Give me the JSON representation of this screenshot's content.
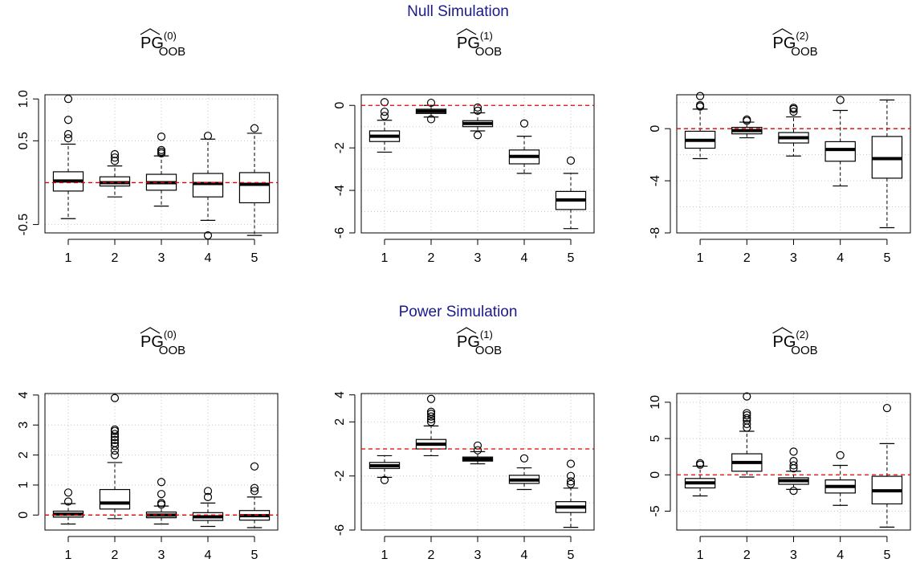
{
  "sections": [
    {
      "title": "Null Simulation"
    },
    {
      "title": "Power Simulation"
    }
  ],
  "chart_data": [
    {
      "type": "box",
      "section": "Null Simulation",
      "title_base": "PG",
      "title_sup": "(0)",
      "title_sub": "OOB",
      "categories": [
        "1",
        "2",
        "3",
        "4",
        "5"
      ],
      "ylim": [
        -0.6,
        1.05
      ],
      "yticks": [
        {
          "v": 1.0,
          "label": "1.0"
        },
        {
          "v": 0.5,
          "label": "0.5"
        },
        {
          "v": -0.5,
          "label": "-0.5"
        }
      ],
      "xgrid": [
        1,
        2,
        3,
        4,
        5
      ],
      "ygrid": [
        -0.5,
        0,
        0.5,
        1.0
      ],
      "refline": 0,
      "boxes": [
        {
          "whislo": -0.43,
          "q1": -0.1,
          "median": 0.02,
          "q3": 0.13,
          "whishi": 0.46,
          "fliers": [
            0.53,
            0.58,
            0.75,
            1.0
          ]
        },
        {
          "whislo": -0.17,
          "q1": -0.04,
          "median": 0.0,
          "q3": 0.07,
          "whishi": 0.2,
          "fliers": [
            0.26,
            0.3,
            0.34
          ]
        },
        {
          "whislo": -0.28,
          "q1": -0.09,
          "median": 0.0,
          "q3": 0.1,
          "whishi": 0.32,
          "fliers": [
            0.35,
            0.37,
            0.39,
            0.55
          ]
        },
        {
          "whislo": -0.45,
          "q1": -0.17,
          "median": -0.01,
          "q3": 0.11,
          "whishi": 0.52,
          "fliers": [
            0.56,
            -0.63
          ]
        },
        {
          "whislo": -0.63,
          "q1": -0.24,
          "median": -0.02,
          "q3": 0.12,
          "whishi": 0.59,
          "fliers": [
            0.65
          ]
        }
      ]
    },
    {
      "type": "box",
      "section": "Null Simulation",
      "title_base": "PG",
      "title_sup": "(1)",
      "title_sub": "OOB",
      "categories": [
        "1",
        "2",
        "3",
        "4",
        "5"
      ],
      "ylim": [
        -6,
        0.5
      ],
      "yticks": [
        {
          "v": 0,
          "label": "0"
        },
        {
          "v": -2,
          "label": "-2"
        },
        {
          "v": -4,
          "label": "-4"
        },
        {
          "v": -6,
          "label": "-6"
        }
      ],
      "xgrid": [
        1,
        2,
        3,
        4,
        5
      ],
      "ygrid": [
        -6,
        -5,
        -4,
        -3,
        -2,
        -1,
        0
      ],
      "refline": 0,
      "boxes": [
        {
          "whislo": -2.2,
          "q1": -1.7,
          "median": -1.45,
          "q3": -1.2,
          "whishi": -0.7,
          "fliers": [
            -0.5,
            -0.3,
            0.15
          ]
        },
        {
          "whislo": -0.55,
          "q1": -0.38,
          "median": -0.28,
          "q3": -0.18,
          "whishi": 0.0,
          "fliers": [
            0.12,
            -0.65
          ]
        },
        {
          "whislo": -1.2,
          "q1": -1.0,
          "median": -0.85,
          "q3": -0.72,
          "whishi": -0.35,
          "fliers": [
            -0.1,
            -0.25,
            -1.4
          ]
        },
        {
          "whislo": -3.2,
          "q1": -2.75,
          "median": -2.4,
          "q3": -2.1,
          "whishi": -1.45,
          "fliers": [
            -0.85
          ]
        },
        {
          "whislo": -5.8,
          "q1": -4.9,
          "median": -4.45,
          "q3": -4.05,
          "whishi": -3.2,
          "fliers": [
            -2.6
          ]
        }
      ]
    },
    {
      "type": "box",
      "section": "Null Simulation",
      "title_base": "PG",
      "title_sup": "(2)",
      "title_sub": "OOB",
      "categories": [
        "1",
        "2",
        "3",
        "4",
        "5"
      ],
      "ylim": [
        -8,
        2.6
      ],
      "yticks": [
        {
          "v": 0,
          "label": "0"
        },
        {
          "v": -4,
          "label": "-4"
        },
        {
          "v": -8,
          "label": "-8"
        }
      ],
      "xgrid": [
        1,
        2,
        3,
        4,
        5
      ],
      "ygrid": [
        -8,
        -6,
        -4,
        -2,
        0,
        2
      ],
      "refline": 0,
      "boxes": [
        {
          "whislo": -2.3,
          "q1": -1.5,
          "median": -0.9,
          "q3": -0.2,
          "whishi": 1.5,
          "fliers": [
            1.7,
            1.8,
            2.5
          ]
        },
        {
          "whislo": -0.7,
          "q1": -0.4,
          "median": -0.15,
          "q3": 0.1,
          "whishi": 0.5,
          "fliers": [
            0.6,
            0.7
          ]
        },
        {
          "whislo": -2.1,
          "q1": -1.1,
          "median": -0.7,
          "q3": -0.3,
          "whishi": 0.9,
          "fliers": [
            1.3,
            1.5,
            1.6
          ]
        },
        {
          "whislo": -4.4,
          "q1": -2.5,
          "median": -1.6,
          "q3": -1.0,
          "whishi": 1.4,
          "fliers": [
            2.2
          ]
        },
        {
          "whislo": -7.6,
          "q1": -3.8,
          "median": -2.3,
          "q3": -0.6,
          "whishi": 2.2,
          "fliers": []
        }
      ]
    },
    {
      "type": "box",
      "section": "Power Simulation",
      "title_base": "PG",
      "title_sup": "(0)",
      "title_sub": "OOB",
      "categories": [
        "1",
        "2",
        "3",
        "4",
        "5"
      ],
      "ylim": [
        -0.5,
        4.05
      ],
      "yticks": [
        {
          "v": 0,
          "label": "0"
        },
        {
          "v": 1,
          "label": "1"
        },
        {
          "v": 2,
          "label": "2"
        },
        {
          "v": 3,
          "label": "3"
        },
        {
          "v": 4,
          "label": "4"
        }
      ],
      "xgrid": [
        1,
        2,
        3,
        4,
        5
      ],
      "ygrid": [
        0,
        1,
        2,
        3,
        4
      ],
      "refline": 0,
      "boxes": [
        {
          "whislo": -0.3,
          "q1": -0.07,
          "median": 0.03,
          "q3": 0.13,
          "whishi": 0.38,
          "fliers": [
            0.45,
            0.75
          ]
        },
        {
          "whislo": -0.12,
          "q1": 0.2,
          "median": 0.4,
          "q3": 0.85,
          "whishi": 1.75,
          "fliers": [
            2.0,
            2.15,
            2.3,
            2.4,
            2.5,
            2.6,
            2.7,
            2.8,
            2.85,
            3.9
          ]
        },
        {
          "whislo": -0.3,
          "q1": -0.09,
          "median": 0.0,
          "q3": 0.1,
          "whishi": 0.3,
          "fliers": [
            0.35,
            0.4,
            0.7,
            1.1
          ]
        },
        {
          "whislo": -0.38,
          "q1": -0.18,
          "median": -0.06,
          "q3": 0.08,
          "whishi": 0.4,
          "fliers": [
            0.6,
            0.8
          ]
        },
        {
          "whislo": -0.42,
          "q1": -0.17,
          "median": -0.02,
          "q3": 0.15,
          "whishi": 0.6,
          "fliers": [
            0.8,
            0.9,
            1.62
          ]
        }
      ]
    },
    {
      "type": "box",
      "section": "Power Simulation",
      "title_base": "PG",
      "title_sup": "(1)",
      "title_sub": "OOB",
      "categories": [
        "1",
        "2",
        "3",
        "4",
        "5"
      ],
      "ylim": [
        -6,
        4.1
      ],
      "yticks": [
        {
          "v": 4,
          "label": "4"
        },
        {
          "v": 2,
          "label": "2"
        },
        {
          "v": -2,
          "label": "-2"
        },
        {
          "v": -6,
          "label": "-6"
        }
      ],
      "xgrid": [
        1,
        2,
        3,
        4,
        5
      ],
      "ygrid": [
        -6,
        -4,
        -2,
        0,
        2,
        4
      ],
      "refline": 0,
      "boxes": [
        {
          "whislo": -2.1,
          "q1": -1.45,
          "median": -1.25,
          "q3": -1.0,
          "whishi": -0.5,
          "fliers": [
            -2.3
          ]
        },
        {
          "whislo": -0.5,
          "q1": 0.0,
          "median": 0.35,
          "q3": 0.7,
          "whishi": 1.7,
          "fliers": [
            2.0,
            2.2,
            2.4,
            2.6,
            2.75,
            3.7
          ]
        },
        {
          "whislo": -1.1,
          "q1": -0.9,
          "median": -0.75,
          "q3": -0.6,
          "whishi": -0.2,
          "fliers": [
            0.25,
            -0.1
          ]
        },
        {
          "whislo": -3.0,
          "q1": -2.55,
          "median": -2.3,
          "q3": -1.95,
          "whishi": -1.4,
          "fliers": [
            -0.7
          ]
        },
        {
          "whislo": -5.8,
          "q1": -4.7,
          "median": -4.3,
          "q3": -3.9,
          "whishi": -2.9,
          "fliers": [
            -1.1,
            -2.0,
            -2.4,
            -2.6
          ]
        }
      ]
    },
    {
      "type": "box",
      "section": "Power Simulation",
      "title_base": "PG",
      "title_sup": "(2)",
      "title_sub": "OOB",
      "categories": [
        "1",
        "2",
        "3",
        "4",
        "5"
      ],
      "ylim": [
        -7.6,
        11.2
      ],
      "yticks": [
        {
          "v": 10,
          "label": "10"
        },
        {
          "v": 5,
          "label": "5"
        },
        {
          "v": 0,
          "label": "0"
        },
        {
          "v": -5,
          "label": "-5"
        }
      ],
      "xgrid": [
        1,
        2,
        3,
        4,
        5
      ],
      "ygrid": [
        -5,
        0,
        5,
        10
      ],
      "refline": 0,
      "boxes": [
        {
          "whislo": -2.9,
          "q1": -1.8,
          "median": -1.1,
          "q3": -0.5,
          "whishi": 1.2,
          "fliers": [
            1.4,
            1.6
          ]
        },
        {
          "whislo": -0.3,
          "q1": 0.5,
          "median": 1.7,
          "q3": 2.9,
          "whishi": 6.0,
          "fliers": [
            6.5,
            7.0,
            7.5,
            7.8,
            8.2,
            8.5,
            10.8
          ]
        },
        {
          "whislo": -2.0,
          "q1": -1.3,
          "median": -0.8,
          "q3": -0.4,
          "whishi": 0.5,
          "fliers": [
            0.9,
            1.3,
            1.9,
            3.2,
            -2.2
          ]
        },
        {
          "whislo": -4.2,
          "q1": -2.5,
          "median": -1.6,
          "q3": -0.7,
          "whishi": 1.3,
          "fliers": [
            2.7
          ]
        },
        {
          "whislo": -7.2,
          "q1": -4.0,
          "median": -2.2,
          "q3": -0.2,
          "whishi": 4.3,
          "fliers": [
            9.2
          ]
        }
      ]
    }
  ]
}
